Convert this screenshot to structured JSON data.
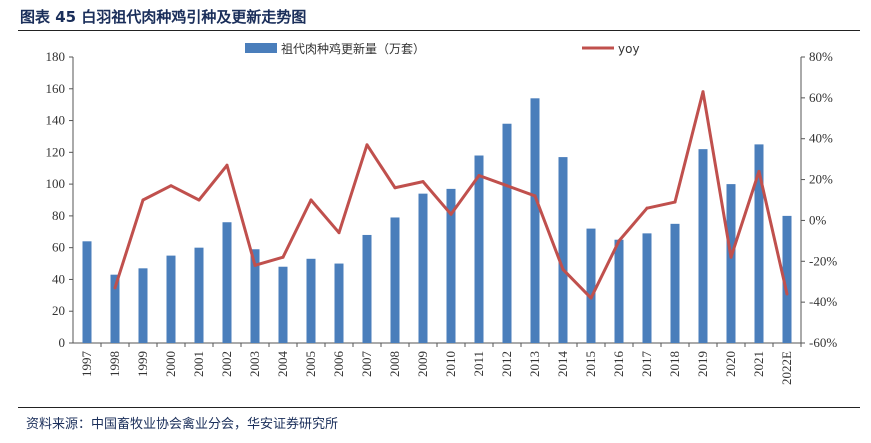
{
  "figure_title": "图表 45  白羽祖代肉种鸡引种及更新走势图",
  "source": "资料来源：中国畜牧业协会禽业分会，华安证券研究所",
  "chart_data": {
    "type": "bar",
    "categories": [
      "1997",
      "1998",
      "1999",
      "2000",
      "2001",
      "2002",
      "2003",
      "2004",
      "2005",
      "2006",
      "2007",
      "2008",
      "2009",
      "2010",
      "2011",
      "2012",
      "2013",
      "2014",
      "2015",
      "2016",
      "2017",
      "2018",
      "2019",
      "2020",
      "2021",
      "2022E"
    ],
    "series": [
      {
        "name": "祖代肉种鸡更新量（万套）",
        "type": "bar",
        "axis": "left",
        "color": "#4a7ebb",
        "values": [
          64,
          43,
          47,
          55,
          60,
          76,
          59,
          48,
          53,
          50,
          68,
          79,
          94,
          97,
          118,
          138,
          154,
          117,
          72,
          65,
          69,
          75,
          122,
          100,
          125,
          80
        ]
      },
      {
        "name": "yoy",
        "type": "line",
        "axis": "right",
        "color": "#c0504d",
        "values": [
          null,
          -0.33,
          0.1,
          0.17,
          0.1,
          0.27,
          -0.22,
          -0.18,
          0.1,
          -0.06,
          0.37,
          0.16,
          0.19,
          0.03,
          0.22,
          0.17,
          0.12,
          -0.24,
          -0.38,
          -0.1,
          0.06,
          0.09,
          0.63,
          -0.18,
          0.24,
          -0.36
        ]
      }
    ],
    "left_axis": {
      "min": 0,
      "max": 180,
      "step": 20,
      "ticks": [
        "0",
        "20",
        "40",
        "60",
        "80",
        "100",
        "120",
        "140",
        "160",
        "180"
      ]
    },
    "right_axis": {
      "min": -0.6,
      "max": 0.8,
      "step": 0.2,
      "ticks": [
        "-60%",
        "-40%",
        "-20%",
        "0%",
        "20%",
        "40%",
        "60%",
        "80%"
      ]
    },
    "legend": {
      "position": "top"
    },
    "grid": false
  }
}
